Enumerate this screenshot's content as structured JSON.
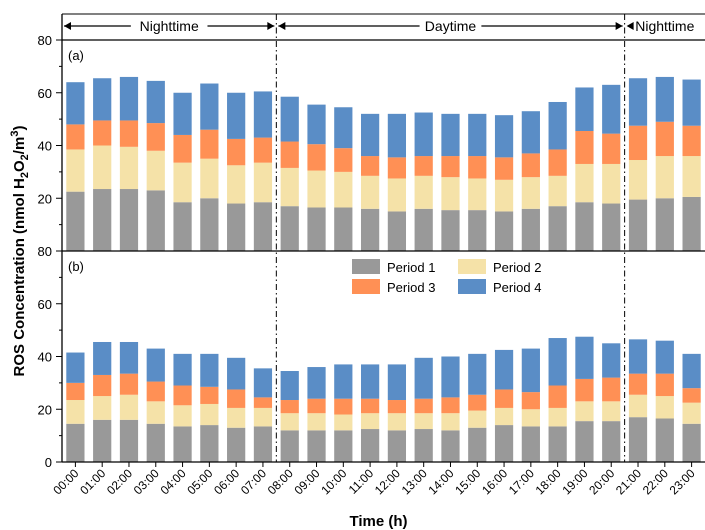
{
  "chart_data": {
    "type": "bar",
    "stacked": true,
    "xlabel": "Time (h)",
    "ylabel": {
      "prefix": "ROS Concentration  (nmol H",
      "sub": "2",
      "mid": "O",
      "sub2": "2",
      "end": "/m",
      "sup": "3",
      "close": ")"
    },
    "ylim": [
      0,
      80
    ],
    "yticks": [
      0,
      20,
      40,
      60,
      80
    ],
    "categories": [
      "00:00",
      "01:00",
      "02:00",
      "03:00",
      "04:00",
      "05:00",
      "06:00",
      "07:00",
      "08:00",
      "09:00",
      "10:00",
      "11:00",
      "12:00",
      "13:00",
      "14:00",
      "15:00",
      "16:00",
      "17:00",
      "18:00",
      "19:00",
      "20:00",
      "21:00",
      "22:00",
      "23:00"
    ],
    "periods": [
      {
        "label": "Nighttime",
        "from": 0,
        "to": 8
      },
      {
        "label": "Daytime",
        "from": 8,
        "to": 21
      },
      {
        "label": "Nighttime",
        "from": 21,
        "to": 24
      }
    ],
    "legend": {
      "placement": "top-center of panel (b)"
    },
    "series": [
      {
        "name": "Period 1",
        "color": "#999999"
      },
      {
        "name": "Period 2",
        "color": "#F5E2A8"
      },
      {
        "name": "Period 3",
        "color": "#FF9055"
      },
      {
        "name": "Period 4",
        "color": "#5A8DC6"
      }
    ],
    "panels": [
      {
        "label": "(a)",
        "cumulative": [
          [
            22.5,
            38.5,
            48,
            64
          ],
          [
            23.5,
            40,
            49.5,
            65.5
          ],
          [
            23.5,
            39.5,
            49.5,
            66
          ],
          [
            23,
            38,
            48.5,
            64.5
          ],
          [
            18.5,
            33.5,
            44,
            60
          ],
          [
            20,
            35,
            46,
            63.5
          ],
          [
            18,
            32.5,
            42.5,
            60
          ],
          [
            18.5,
            33.5,
            43,
            60.5
          ],
          [
            17,
            31.5,
            41.5,
            58.5
          ],
          [
            16.5,
            30.5,
            40.5,
            55.5
          ],
          [
            16.5,
            30,
            39,
            54.5
          ],
          [
            16,
            28.5,
            36,
            52
          ],
          [
            15,
            27.5,
            35.5,
            52
          ],
          [
            16,
            28.5,
            36,
            52.5
          ],
          [
            15.5,
            28,
            36,
            52
          ],
          [
            15.5,
            27.5,
            36,
            52
          ],
          [
            15,
            27,
            35.5,
            51.5
          ],
          [
            16,
            28,
            37,
            53
          ],
          [
            17,
            28.5,
            38.5,
            56.5
          ],
          [
            18.5,
            33,
            45.5,
            62
          ],
          [
            18,
            33,
            44.5,
            63
          ],
          [
            19.5,
            34.5,
            47.5,
            65.5
          ],
          [
            20,
            36,
            49,
            66
          ],
          [
            20.5,
            36,
            47.5,
            65
          ]
        ]
      },
      {
        "label": "(b)",
        "cumulative": [
          [
            14.5,
            23.5,
            30,
            41.5
          ],
          [
            16,
            25,
            33,
            45.5
          ],
          [
            16,
            25.5,
            33.5,
            45.5
          ],
          [
            14.5,
            23,
            30.5,
            43
          ],
          [
            13.5,
            21.5,
            29,
            41
          ],
          [
            14,
            22,
            28.5,
            41
          ],
          [
            13,
            20.5,
            27.5,
            39.5
          ],
          [
            13.5,
            20.5,
            24.5,
            35.5
          ],
          [
            12,
            18.5,
            23.5,
            34.5
          ],
          [
            12,
            18.5,
            24,
            36
          ],
          [
            12,
            18,
            24,
            37
          ],
          [
            12.5,
            18.5,
            24,
            37
          ],
          [
            12,
            18.5,
            23.5,
            37
          ],
          [
            12.5,
            18.5,
            24,
            39.5
          ],
          [
            12,
            18.5,
            24.5,
            40
          ],
          [
            13,
            19.5,
            25.5,
            41
          ],
          [
            14,
            20.5,
            27.5,
            42.5
          ],
          [
            13.5,
            20,
            26.5,
            43
          ],
          [
            13.5,
            20.5,
            29,
            47
          ],
          [
            15.5,
            23,
            31.5,
            47.5
          ],
          [
            15.5,
            23,
            32,
            45
          ],
          [
            17,
            25.5,
            33.5,
            46.5
          ],
          [
            16.5,
            25,
            33.5,
            46
          ],
          [
            14.5,
            22.5,
            28,
            41
          ]
        ]
      }
    ]
  }
}
